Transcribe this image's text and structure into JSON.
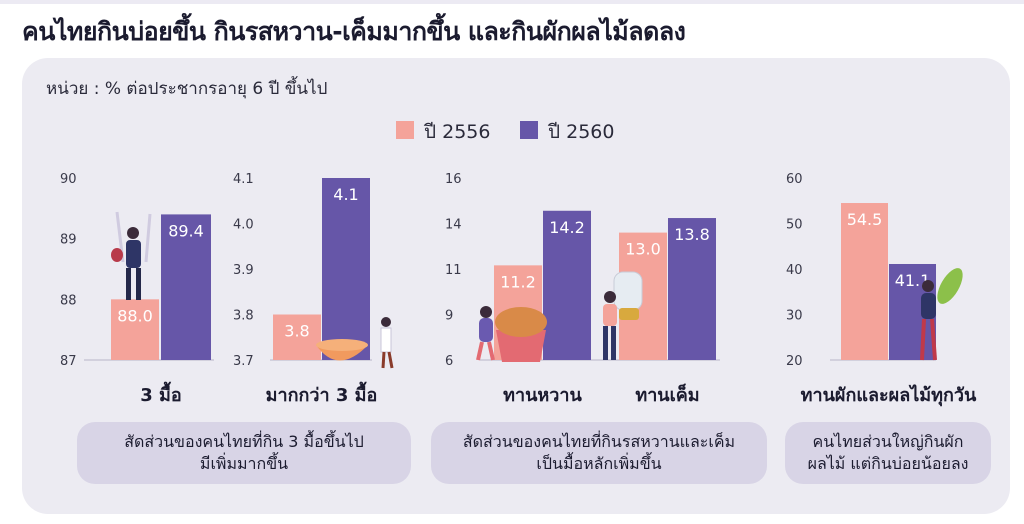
{
  "headline": "คนไทยกินบ่อยขึ้น กินรสหวาน-เค็มมากขึ้น และกินผักผลไม้ลดลง",
  "unit_label": "หน่วย : % ต่อประชากรอายุ 6 ปี ขึ้นไป",
  "colors": {
    "y2556": "#f4a39a",
    "y2560": "#6656a8",
    "panel": "#ecebf2",
    "caption": "#d8d4e6"
  },
  "legend": [
    {
      "label": "ปี 2556",
      "color": "#f4a39a"
    },
    {
      "label": "ปี 2560",
      "color": "#6656a8"
    }
  ],
  "chart_data": [
    {
      "type": "bar",
      "categories": [
        "3 มื้อ"
      ],
      "ylim": [
        87,
        90
      ],
      "yticks": [
        "87",
        "88",
        "89",
        "90"
      ],
      "series": [
        {
          "name": "ปี 2556",
          "values": [
            88.0
          ]
        },
        {
          "name": "ปี 2560",
          "values": [
            89.4
          ]
        }
      ],
      "value_labels": [
        [
          "88.0"
        ],
        [
          "89.4"
        ]
      ]
    },
    {
      "type": "bar",
      "categories": [
        "มากกว่า 3 มื้อ"
      ],
      "ylim": [
        3.7,
        4.1
      ],
      "yticks": [
        "3.7",
        "3.8",
        "3.9",
        "4.0",
        "4.1"
      ],
      "series": [
        {
          "name": "ปี 2556",
          "values": [
            3.8
          ]
        },
        {
          "name": "ปี 2560",
          "values": [
            4.1
          ]
        }
      ],
      "value_labels": [
        [
          "3.8"
        ],
        [
          "4.1"
        ]
      ]
    },
    {
      "type": "bar",
      "categories": [
        "ทานหวาน",
        "ทานเค็ม"
      ],
      "ylim": [
        6,
        16
      ],
      "yticks": [
        "6",
        "9",
        "11",
        "14",
        "16"
      ],
      "series": [
        {
          "name": "ปี 2556",
          "values": [
            11.2,
            13.0
          ]
        },
        {
          "name": "ปี 2560",
          "values": [
            14.2,
            13.8
          ]
        }
      ],
      "value_labels": [
        [
          "11.2",
          "13.0"
        ],
        [
          "14.2",
          "13.8"
        ]
      ]
    },
    {
      "type": "bar",
      "categories": [
        "ทานผักและผลไม้ทุกวัน"
      ],
      "ylim": [
        20,
        60
      ],
      "yticks": [
        "20",
        "30",
        "40",
        "50",
        "60"
      ],
      "series": [
        {
          "name": "ปี 2556",
          "values": [
            54.5
          ]
        },
        {
          "name": "ปี 2560",
          "values": [
            41.1
          ]
        }
      ],
      "value_labels": [
        [
          "54.5"
        ],
        [
          "41.1"
        ]
      ]
    }
  ],
  "captions": [
    {
      "line1": "สัดส่วนของคนไทยที่กิน 3 มื้อขึ้นไป",
      "line2": "มีเพิ่มมากขึ้น"
    },
    {
      "line1": "สัดส่วนของคนไทยที่กินรสหวานและเค็ม",
      "line2": "เป็นมื้อหลักเพิ่มขึ้น"
    },
    {
      "line1": "คนไทยส่วนใหญ่กินผัก",
      "line2": "ผลไม้ แต่กินบ่อยน้อยลง"
    }
  ]
}
